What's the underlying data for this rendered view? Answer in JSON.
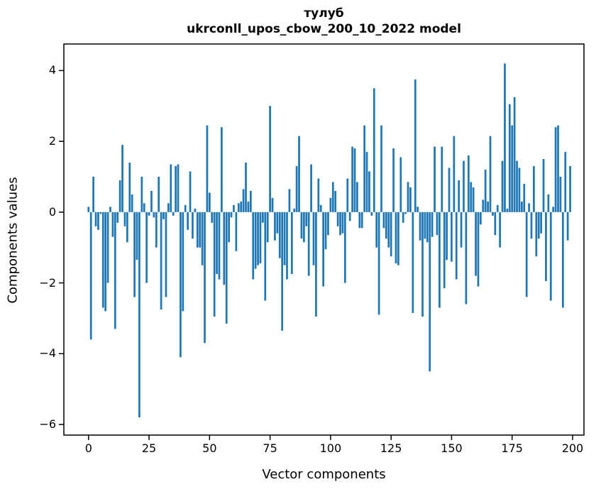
{
  "figure": {
    "title_line1": "тулуб",
    "title_line2": "ukrconll_upos_cbow_200_10_2022 model"
  },
  "chart_data": {
    "type": "bar",
    "title": "тулуб — ukrconll_upos_cbow_200_10_2022 model",
    "xlabel": "Vector components",
    "ylabel": "Components values",
    "x_start": 0,
    "bar_color": "#1f77b4",
    "grid": false,
    "legend": null,
    "xticks": [
      0,
      25,
      50,
      75,
      100,
      125,
      150,
      175,
      200
    ],
    "xtick_labels": [
      "0",
      "25",
      "50",
      "75",
      "100",
      "125",
      "150",
      "175",
      "200"
    ],
    "yticks": [
      4,
      2,
      0,
      -2,
      -4,
      -6
    ],
    "ytick_labels": [
      "4",
      "2",
      "0",
      "−2",
      "−4",
      "−6"
    ],
    "xlim": [
      -10.2,
      204.7
    ],
    "ylim": [
      -6.3,
      4.75
    ],
    "values": [
      0.15,
      -3.6,
      1.0,
      -0.4,
      -0.5,
      -0.05,
      -2.7,
      -2.8,
      -2.0,
      0.15,
      -0.7,
      -3.3,
      -0.3,
      0.9,
      1.9,
      -0.4,
      -0.85,
      1.4,
      0.5,
      -2.4,
      -1.35,
      -5.8,
      1.0,
      0.25,
      -2.0,
      -0.1,
      0.6,
      -0.15,
      -1.0,
      1.0,
      -2.75,
      -0.2,
      -2.4,
      0.25,
      1.35,
      -0.1,
      1.3,
      1.35,
      -4.1,
      -2.8,
      0.2,
      -0.5,
      1.15,
      -0.75,
      0.1,
      -1.0,
      -1.0,
      -1.5,
      -3.7,
      2.45,
      0.55,
      -0.3,
      -2.95,
      -1.75,
      -1.9,
      2.4,
      -2.05,
      -3.15,
      -0.85,
      -0.15,
      0.2,
      -1.1,
      0.25,
      0.3,
      0.65,
      1.4,
      0.3,
      0.6,
      -1.9,
      -1.6,
      -1.5,
      -1.45,
      -0.3,
      -2.5,
      -0.85,
      3.0,
      0.4,
      -0.8,
      -0.6,
      -1.3,
      -3.35,
      -1.5,
      -1.9,
      0.65,
      -1.75,
      0.1,
      1.3,
      2.15,
      -0.75,
      -0.85,
      -0.4,
      -1.8,
      1.35,
      -1.5,
      -2.95,
      0.95,
      0.2,
      -2.1,
      -1.05,
      -0.65,
      0.4,
      0.85,
      0.6,
      -0.4,
      -0.65,
      -0.6,
      -2.0,
      0.95,
      -0.25,
      1.85,
      1.8,
      0.85,
      -0.45,
      -0.45,
      2.45,
      1.7,
      1.15,
      -0.1,
      3.5,
      -1.0,
      -2.9,
      2.45,
      -0.45,
      -0.75,
      -1.0,
      -1.25,
      1.8,
      -1.45,
      -1.5,
      1.55,
      -0.3,
      -0.05,
      0.85,
      0.7,
      -2.85,
      3.75,
      0.15,
      -0.8,
      -2.95,
      -0.75,
      -0.85,
      -4.5,
      -0.7,
      1.85,
      -0.65,
      -2.7,
      1.85,
      -2.15,
      -1.35,
      1.25,
      -1.4,
      2.15,
      -1.9,
      0.9,
      -1.0,
      1.45,
      -2.6,
      1.6,
      0.85,
      0.7,
      -1.8,
      -2.1,
      -0.35,
      0.35,
      1.2,
      0.3,
      2.15,
      -0.1,
      -0.65,
      0.2,
      -1.0,
      1.45,
      4.2,
      0.1,
      3.05,
      2.45,
      3.25,
      1.45,
      1.25,
      0.3,
      0.8,
      -2.4,
      0.25,
      -0.75,
      1.3,
      -1.25,
      -0.75,
      -0.6,
      1.5,
      -1.95,
      0.5,
      -2.5,
      0.15,
      2.4,
      2.45,
      1.0,
      -2.7,
      1.7,
      -0.8,
      1.3
    ]
  }
}
